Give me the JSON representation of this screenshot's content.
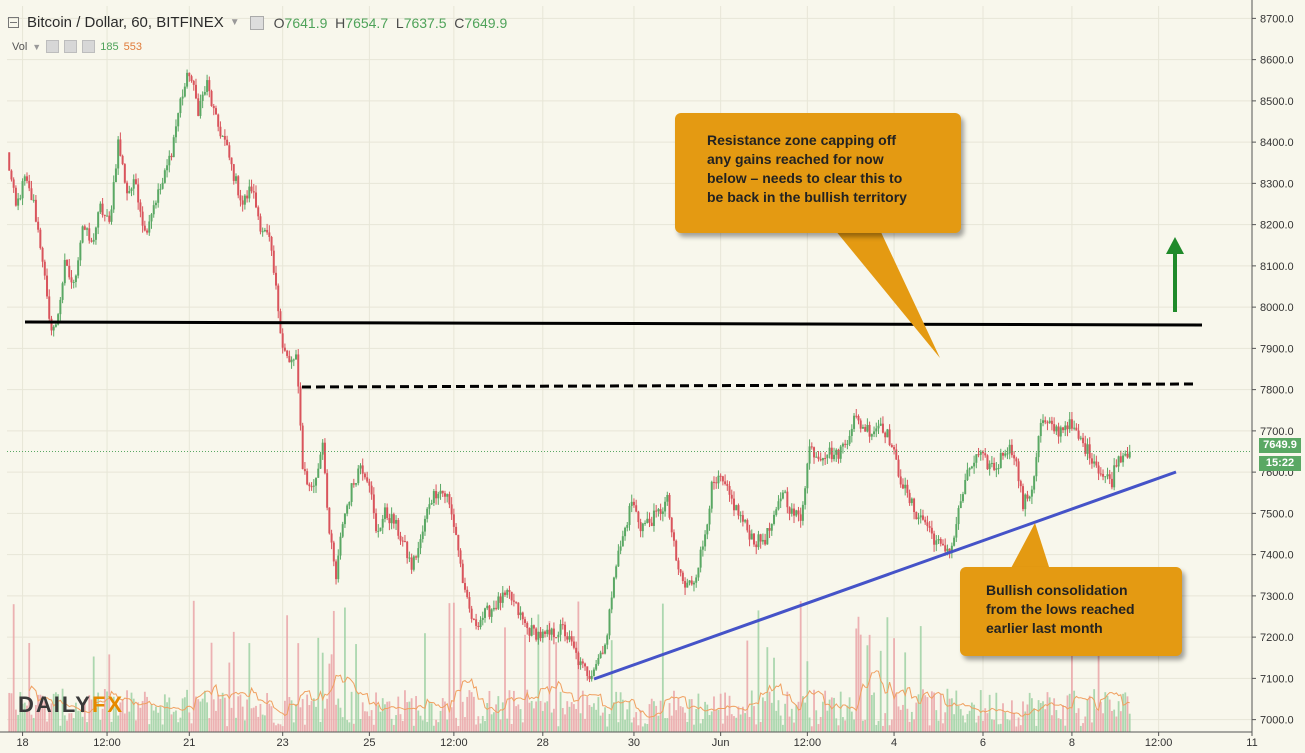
{
  "header": {
    "symbol": "Bitcoin / Dollar, 60, BITFINEX",
    "open_label": "O",
    "open": "7641.9",
    "high_label": "H",
    "high": "7654.7",
    "low_label": "L",
    "low": "7637.5",
    "close_label": "C",
    "close": "7649.9"
  },
  "volume_legend": {
    "label": "Vol",
    "value_1": "185",
    "value_2": "553"
  },
  "annotations": {
    "resistance_lines": [
      "Resistance zone capping off",
      "any gains reached for now",
      "below – needs to clear this to",
      "be back in the bullish territory"
    ],
    "support_lines": [
      "Bullish consolidation",
      "from the lows reached",
      "earlier last month"
    ]
  },
  "price_tags": {
    "last_price": "7649.9",
    "countdown": "15:22"
  },
  "logo": {
    "part1": "DAILY",
    "part2": "FX"
  },
  "colors": {
    "background": "#f8f7ec",
    "up": "#5aa864",
    "down": "#d9545c",
    "callout": "#e49a12",
    "trendline": "#4553c8",
    "arrow": "#1f8a2a",
    "last_price_line": "#5aa864",
    "volume_ma": "#f0a060"
  },
  "chart_data": {
    "type": "candlestick",
    "title": "Bitcoin / Dollar, 60, BITFINEX",
    "ylim": [
      6970,
      8730
    ],
    "y_ticks": [
      7000,
      7100,
      7200,
      7300,
      7400,
      7500,
      7600,
      7700,
      7800,
      7900,
      8000,
      8100,
      8200,
      8300,
      8400,
      8500,
      8600,
      8700
    ],
    "x_ticks": [
      "18",
      "12:00",
      "21",
      "23",
      "25",
      "12:00",
      "28",
      "30",
      "Jun",
      "12:00",
      "4",
      "6",
      "8",
      "12:00",
      "11"
    ],
    "x_tick_index": [
      7,
      45,
      82,
      124,
      163,
      201,
      241,
      282,
      321,
      360,
      399,
      439,
      479,
      518,
      560
    ],
    "grid": true,
    "last_price": 7649.9,
    "volume_range": [
      0,
      553
    ],
    "price_path": [
      [
        0,
        8370
      ],
      [
        4,
        8240
      ],
      [
        8,
        8310
      ],
      [
        12,
        8250
      ],
      [
        16,
        8120
      ],
      [
        19,
        7960
      ],
      [
        22,
        7950
      ],
      [
        26,
        8100
      ],
      [
        30,
        8050
      ],
      [
        34,
        8200
      ],
      [
        38,
        8150
      ],
      [
        42,
        8240
      ],
      [
        46,
        8200
      ],
      [
        50,
        8400
      ],
      [
        54,
        8280
      ],
      [
        58,
        8300
      ],
      [
        62,
        8180
      ],
      [
        66,
        8250
      ],
      [
        70,
        8300
      ],
      [
        74,
        8380
      ],
      [
        78,
        8500
      ],
      [
        82,
        8570
      ],
      [
        86,
        8480
      ],
      [
        90,
        8540
      ],
      [
        94,
        8450
      ],
      [
        98,
        8400
      ],
      [
        102,
        8320
      ],
      [
        106,
        8250
      ],
      [
        110,
        8290
      ],
      [
        114,
        8200
      ],
      [
        118,
        8160
      ],
      [
        121,
        8040
      ],
      [
        124,
        7910
      ],
      [
        127,
        7860
      ],
      [
        130,
        7880
      ],
      [
        133,
        7620
      ],
      [
        136,
        7560
      ],
      [
        139,
        7580
      ],
      [
        142,
        7680
      ],
      [
        145,
        7450
      ],
      [
        148,
        7340
      ],
      [
        151,
        7480
      ],
      [
        155,
        7560
      ],
      [
        159,
        7620
      ],
      [
        163,
        7580
      ],
      [
        166,
        7450
      ],
      [
        170,
        7500
      ],
      [
        174,
        7480
      ],
      [
        178,
        7430
      ],
      [
        182,
        7370
      ],
      [
        186,
        7430
      ],
      [
        190,
        7530
      ],
      [
        194,
        7560
      ],
      [
        198,
        7540
      ],
      [
        202,
        7450
      ],
      [
        206,
        7300
      ],
      [
        210,
        7230
      ],
      [
        214,
        7250
      ],
      [
        218,
        7270
      ],
      [
        222,
        7290
      ],
      [
        226,
        7300
      ],
      [
        230,
        7260
      ],
      [
        234,
        7220
      ],
      [
        238,
        7210
      ],
      [
        242,
        7200
      ],
      [
        246,
        7210
      ],
      [
        250,
        7220
      ],
      [
        254,
        7180
      ],
      [
        258,
        7130
      ],
      [
        262,
        7110
      ],
      [
        266,
        7150
      ],
      [
        270,
        7200
      ],
      [
        273,
        7360
      ],
      [
        277,
        7440
      ],
      [
        281,
        7530
      ],
      [
        285,
        7470
      ],
      [
        289,
        7480
      ],
      [
        293,
        7500
      ],
      [
        297,
        7530
      ],
      [
        301,
        7380
      ],
      [
        305,
        7320
      ],
      [
        309,
        7340
      ],
      [
        313,
        7420
      ],
      [
        317,
        7560
      ],
      [
        321,
        7580
      ],
      [
        325,
        7540
      ],
      [
        329,
        7500
      ],
      [
        333,
        7460
      ],
      [
        337,
        7430
      ],
      [
        341,
        7440
      ],
      [
        345,
        7480
      ],
      [
        349,
        7560
      ],
      [
        353,
        7500
      ],
      [
        357,
        7490
      ],
      [
        361,
        7660
      ],
      [
        365,
        7640
      ],
      [
        369,
        7650
      ],
      [
        373,
        7640
      ],
      [
        377,
        7670
      ],
      [
        381,
        7730
      ],
      [
        385,
        7710
      ],
      [
        389,
        7700
      ],
      [
        393,
        7720
      ],
      [
        397,
        7680
      ],
      [
        401,
        7600
      ],
      [
        405,
        7540
      ],
      [
        409,
        7500
      ],
      [
        413,
        7480
      ],
      [
        417,
        7440
      ],
      [
        421,
        7410
      ],
      [
        425,
        7420
      ],
      [
        429,
        7530
      ],
      [
        433,
        7610
      ],
      [
        437,
        7640
      ],
      [
        441,
        7620
      ],
      [
        445,
        7610
      ],
      [
        449,
        7660
      ],
      [
        453,
        7650
      ],
      [
        457,
        7520
      ],
      [
        461,
        7560
      ],
      [
        465,
        7720
      ],
      [
        469,
        7710
      ],
      [
        473,
        7700
      ],
      [
        477,
        7720
      ],
      [
        481,
        7690
      ],
      [
        485,
        7660
      ],
      [
        489,
        7630
      ],
      [
        493,
        7590
      ],
      [
        497,
        7580
      ],
      [
        499,
        7630
      ],
      [
        503,
        7650
      ],
      [
        505,
        7650
      ]
    ]
  }
}
